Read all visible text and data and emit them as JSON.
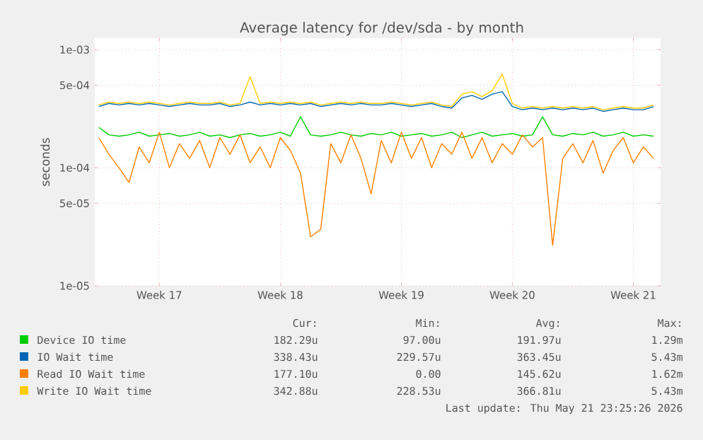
{
  "chart_data": {
    "type": "line",
    "title": "Average latency for /dev/sda - by month",
    "ylabel": "seconds",
    "log": "y",
    "grid": true,
    "legend": "bottom",
    "categories": [
      null,
      null,
      null,
      null,
      null,
      null,
      "Week 17",
      null,
      null,
      null,
      null,
      null,
      null,
      null,
      null,
      null,
      null,
      null,
      "Week 18",
      null,
      null,
      null,
      null,
      null,
      null,
      null,
      null,
      null,
      null,
      null,
      "Week 19",
      null,
      null,
      null,
      null,
      null,
      null,
      null,
      null,
      null,
      null,
      "Week 20",
      null,
      null,
      null,
      null,
      null,
      null,
      null,
      null,
      null,
      null,
      null,
      "Week 21",
      null,
      null
    ],
    "ylim": [
      1e-05,
      0.00125
    ],
    "yticks": [
      {
        "value": 1e-05,
        "label": "1e-05"
      },
      {
        "value": 5e-05,
        "label": "5e-05"
      },
      {
        "value": 0.0001,
        "label": "1e-04"
      },
      {
        "value": 0.0005,
        "label": "5e-04"
      },
      {
        "value": 0.001,
        "label": "1e-03"
      }
    ],
    "series": [
      {
        "name": "Device IO time",
        "color": "#00cc00",
        "values": [
          0.00022,
          0.00019,
          0.000185,
          0.00019,
          0.0002,
          0.000185,
          0.00019,
          0.000195,
          0.000185,
          0.00019,
          0.0002,
          0.000185,
          0.00019,
          0.00018,
          0.00019,
          0.000195,
          0.000185,
          0.00019,
          0.0002,
          0.000185,
          0.00027,
          0.00019,
          0.000185,
          0.00019,
          0.0002,
          0.00019,
          0.000185,
          0.000195,
          0.00019,
          0.0002,
          0.000185,
          0.00019,
          0.000195,
          0.000185,
          0.00019,
          0.0002,
          0.00018,
          0.00019,
          0.0002,
          0.000185,
          0.00019,
          0.000195,
          0.000185,
          0.00019,
          0.00027,
          0.00019,
          0.000185,
          0.000195,
          0.00019,
          0.0002,
          0.000185,
          0.00019,
          0.0002,
          0.000185,
          0.00019,
          0.000185
        ]
      },
      {
        "name": "IO Wait time",
        "color": "#0066b3",
        "values": [
          0.00033,
          0.00035,
          0.00034,
          0.00035,
          0.00034,
          0.00035,
          0.00034,
          0.00033,
          0.00034,
          0.00035,
          0.00034,
          0.00034,
          0.00035,
          0.00033,
          0.00034,
          0.00036,
          0.00034,
          0.00035,
          0.00034,
          0.00035,
          0.00034,
          0.00035,
          0.00033,
          0.00034,
          0.00035,
          0.00034,
          0.00035,
          0.00034,
          0.00034,
          0.00035,
          0.00034,
          0.00033,
          0.00034,
          0.00035,
          0.00033,
          0.00032,
          0.00039,
          0.00041,
          0.00038,
          0.00042,
          0.00044,
          0.00033,
          0.00031,
          0.00032,
          0.00031,
          0.00032,
          0.00031,
          0.00032,
          0.00031,
          0.00032,
          0.0003,
          0.00031,
          0.00032,
          0.00031,
          0.00031,
          0.00033
        ]
      },
      {
        "name": "Read IO Wait time",
        "color": "#ff8000",
        "values": [
          0.00018,
          0.00013,
          0.0001,
          7.5e-05,
          0.00015,
          0.00011,
          0.0002,
          0.0001,
          0.00016,
          0.00012,
          0.00017,
          0.0001,
          0.00018,
          0.00013,
          0.00019,
          0.00011,
          0.00015,
          0.0001,
          0.00018,
          0.00014,
          9e-05,
          2.6e-05,
          3e-05,
          0.00016,
          0.00011,
          0.00019,
          0.00012,
          6e-05,
          0.00017,
          0.00011,
          0.0002,
          0.00012,
          0.00018,
          0.0001,
          0.00016,
          0.00013,
          0.0002,
          0.00012,
          0.00018,
          0.00011,
          0.00016,
          0.00013,
          0.00019,
          0.00015,
          0.00018,
          2.2e-05,
          0.00012,
          0.00016,
          0.00011,
          0.00017,
          9e-05,
          0.00014,
          0.00018,
          0.00011,
          0.00015,
          0.00012
        ]
      },
      {
        "name": "Write IO Wait time",
        "color": "#ffcc00",
        "values": [
          0.00034,
          0.00036,
          0.00035,
          0.00036,
          0.00035,
          0.00036,
          0.00035,
          0.00034,
          0.00035,
          0.00036,
          0.00035,
          0.00035,
          0.00036,
          0.00034,
          0.00035,
          0.00059,
          0.00035,
          0.00036,
          0.00035,
          0.00036,
          0.00035,
          0.00036,
          0.00034,
          0.00035,
          0.00036,
          0.00035,
          0.00036,
          0.00035,
          0.00035,
          0.00036,
          0.00035,
          0.00034,
          0.00035,
          0.00036,
          0.00034,
          0.00033,
          0.00042,
          0.00044,
          0.0004,
          0.00045,
          0.00062,
          0.00035,
          0.00032,
          0.00033,
          0.00032,
          0.00033,
          0.00032,
          0.00033,
          0.00032,
          0.00033,
          0.00031,
          0.00032,
          0.00033,
          0.00032,
          0.00032,
          0.00034
        ]
      }
    ],
    "annotations": [
      "Cur:",
      "Min:",
      "Avg:",
      "Max:",
      "182.29u",
      "97.00u",
      "191.97u",
      "1.29m",
      "338.43u",
      "229.57u",
      "363.45u",
      "5.43m",
      "177.10u",
      "0.00",
      "145.62u",
      "1.62m",
      "342.88u",
      "228.53u",
      "366.81u",
      "5.43m",
      "Last update: Thu May 21 23:25:26 2026"
    ]
  }
}
